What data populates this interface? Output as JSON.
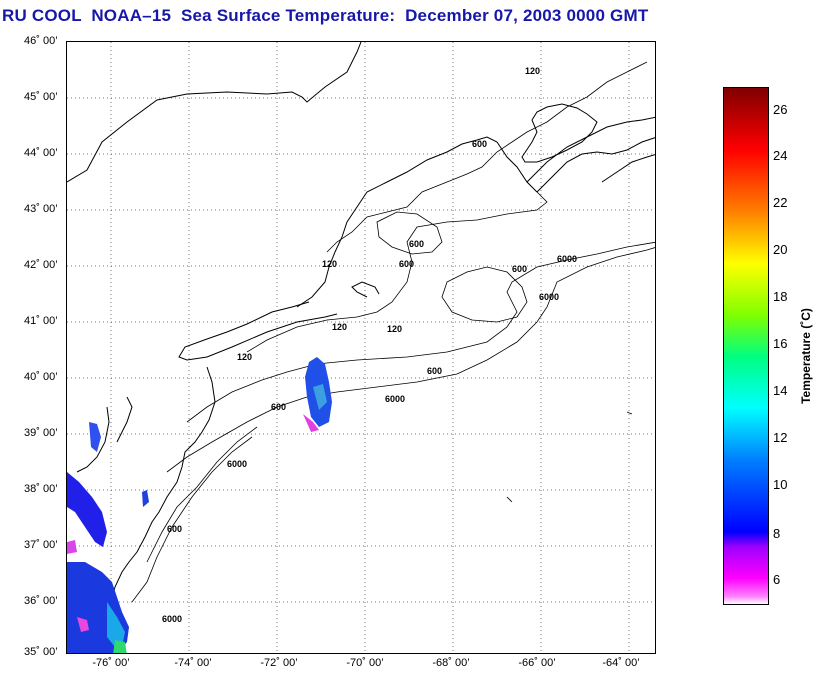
{
  "title": "RU COOL  NOAA–15  Sea Surface Temperature:  December 07, 2003 0000 GMT",
  "map": {
    "lat_labels": [
      "46˚ 00’",
      "45˚ 00’",
      "44˚ 00’",
      "43˚ 00’",
      "42˚ 00’",
      "41˚ 00’",
      "40˚ 00’",
      "39˚ 00’",
      "38˚ 00’",
      "37˚ 00’",
      "36˚ 00’",
      "35˚ 00’"
    ],
    "lon_labels": [
      "-76˚ 00’",
      "-74˚ 00’",
      "-72˚ 00’",
      "-70˚ 00’",
      "-68˚ 00’",
      "-66˚ 00’",
      "-64˚ 00’"
    ],
    "contour_labels": [
      "120",
      "600",
      "6000"
    ]
  },
  "colorbar": {
    "label": "Temperature (˚C)",
    "ticks": [
      "26",
      "24",
      "22",
      "20",
      "18",
      "16",
      "14",
      "12",
      "10",
      "8",
      "6"
    ]
  }
}
